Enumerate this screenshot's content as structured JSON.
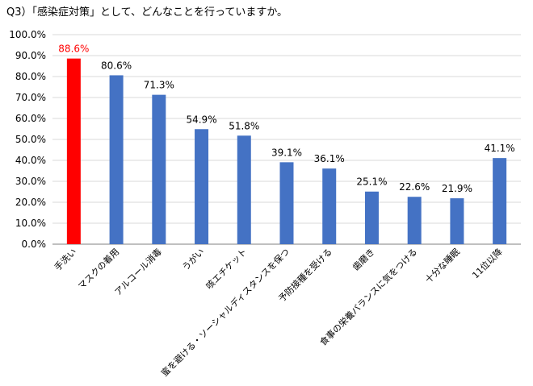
{
  "colors": {
    "default_bar": "#4472C4",
    "highlight_bar": "#FF0000",
    "axis": "#808080",
    "grid": "#D9D9D9",
    "text": "#000000"
  },
  "chart_data": {
    "type": "bar",
    "title": "Q3）「感染症対策」として、どんなことを行っていますか。",
    "xlabel": "",
    "ylabel": "",
    "ylim": [
      0,
      100
    ],
    "y_tick_step": 10,
    "y_tick_labels": [
      "0.0%",
      "10.0%",
      "20.0%",
      "30.0%",
      "40.0%",
      "50.0%",
      "60.0%",
      "70.0%",
      "80.0%",
      "90.0%",
      "100.0%"
    ],
    "grid": true,
    "legend": "none",
    "categories": [
      "手洗い",
      "マスクの着用",
      "アルコール消毒",
      "うがい",
      "咳エチケット",
      "蜜を避ける・ソーシャルディスタンスを保つ",
      "予防接種を受ける",
      "歯磨き",
      "食事の栄養バランスに気をつける",
      "十分な睡眠",
      "11位以降"
    ],
    "values": [
      88.6,
      80.6,
      71.3,
      54.9,
      51.8,
      39.1,
      36.1,
      25.1,
      22.6,
      21.9,
      41.1
    ],
    "data_labels": [
      "88.6%",
      "80.6%",
      "71.3%",
      "54.9%",
      "51.8%",
      "39.1%",
      "36.1%",
      "25.1%",
      "22.6%",
      "21.9%",
      "41.1%"
    ],
    "highlight_index": 0
  }
}
